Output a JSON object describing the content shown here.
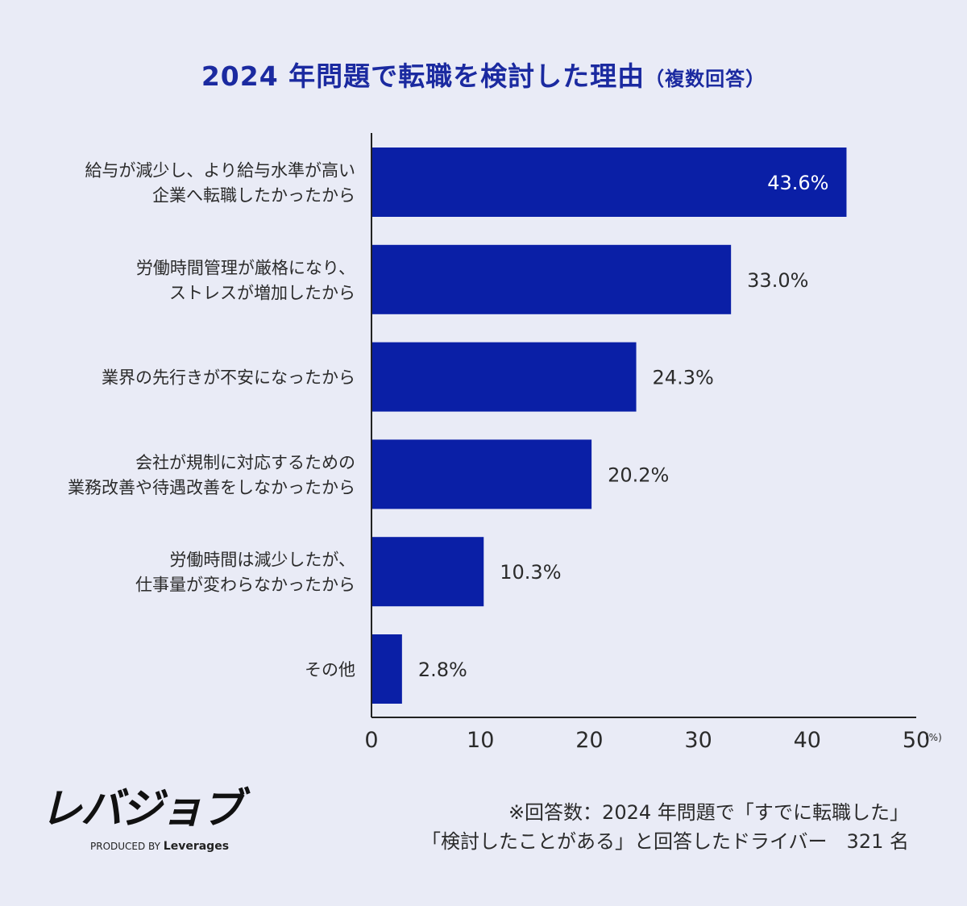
{
  "title": "2024 年問題で転職を検討した理由",
  "title_sub": "（複数回答）",
  "chart_data": {
    "type": "bar",
    "orientation": "horizontal",
    "title": "2024 年問題で転職を検討した理由（複数回答）",
    "categories": [
      "給与が減少し、より給与水準が高い\n企業へ転職したかったから",
      "労働時間管理が厳格になり、\nストレスが増加したから",
      "業界の先行きが不安になったから",
      "会社が規制に対応するための\n業務改善や待遇改善をしなかったから",
      "労働時間は減少したが、\n仕事量が変わらなかったから",
      "その他"
    ],
    "values": [
      43.6,
      33.0,
      24.3,
      20.2,
      10.3,
      2.8
    ],
    "value_labels": [
      "43.6%",
      "33.0%",
      "24.3%",
      "20.2%",
      "10.3%",
      "2.8%"
    ],
    "xlim": [
      0,
      50
    ],
    "xticks": [
      "0",
      "10",
      "20",
      "30",
      "40",
      "50"
    ],
    "x_unit": "(%)",
    "grid": false,
    "bar_color": "#0a1fa6"
  },
  "logo": {
    "main": "レバジョブ",
    "produced_by": "PRODUCED BY",
    "brand": "Leverages"
  },
  "footnote": {
    "line1": "※回答数：2024 年問題で「すでに転職した」",
    "line2": "「検討したことがある」と回答したドライバー　321 名"
  }
}
